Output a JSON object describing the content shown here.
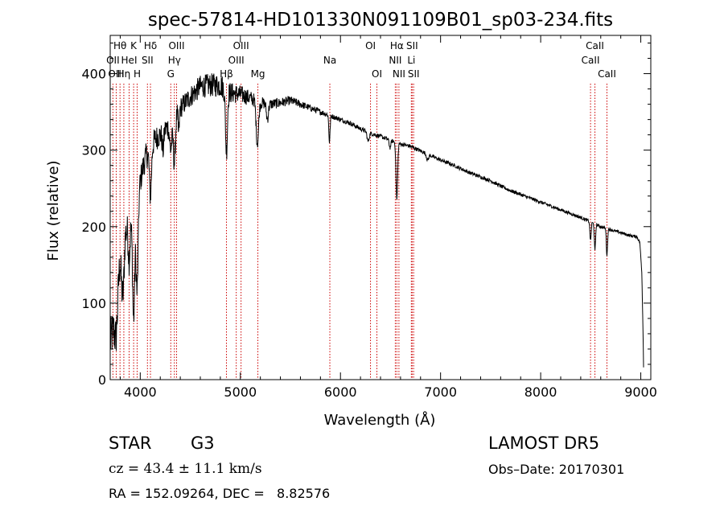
{
  "chart_data": {
    "type": "line",
    "title": "spec-57814-HD101330N091109B01_sp03-234.fits",
    "xlabel": "Wavelength (Å)",
    "ylabel": "Flux (relative)",
    "xlim": [
      3700,
      9100
    ],
    "ylim": [
      0,
      450
    ],
    "x_ticks": [
      4000,
      5000,
      6000,
      7000,
      8000,
      9000
    ],
    "y_ticks": [
      0,
      100,
      200,
      300,
      400
    ],
    "grid": false,
    "line_color": "#000000",
    "line_marker_color": "#cc0000",
    "line_markers": [
      {
        "label": "Hθ",
        "x": 3798,
        "row": 0
      },
      {
        "label": "OII",
        "x": 3727,
        "row": 1
      },
      {
        "label": "OIII",
        "x": 3760,
        "row": 2
      },
      {
        "label": "Hη",
        "x": 3836,
        "row": 2
      },
      {
        "label": "HeI",
        "x": 3889,
        "row": 1
      },
      {
        "label": "K",
        "x": 3934,
        "row": 0
      },
      {
        "label": "H",
        "x": 3969,
        "row": 2
      },
      {
        "label": "SII",
        "x": 4072,
        "row": 1
      },
      {
        "label": "Hδ",
        "x": 4102,
        "row": 0
      },
      {
        "label": "OIII",
        "x": 4363,
        "row": 0
      },
      {
        "label": "Hγ",
        "x": 4341,
        "row": 1
      },
      {
        "label": "G",
        "x": 4305,
        "row": 2
      },
      {
        "label": "Hβ",
        "x": 4861,
        "row": 2
      },
      {
        "label": "OIII",
        "x": 5007,
        "row": 0
      },
      {
        "label": "OIII",
        "x": 4959,
        "row": 1
      },
      {
        "label": "Mg",
        "x": 5175,
        "row": 2
      },
      {
        "label": "Na",
        "x": 5894,
        "row": 1
      },
      {
        "label": "OI",
        "x": 6300,
        "row": 0
      },
      {
        "label": "OI",
        "x": 6364,
        "row": 2
      },
      {
        "label": "Hα",
        "x": 6563,
        "row": 0
      },
      {
        "label": "NII",
        "x": 6548,
        "row": 1
      },
      {
        "label": "NII",
        "x": 6584,
        "row": 2
      },
      {
        "label": "SII",
        "x": 6716,
        "row": 0
      },
      {
        "label": "Li",
        "x": 6708,
        "row": 1
      },
      {
        "label": "SII",
        "x": 6731,
        "row": 2
      },
      {
        "label": "CaII",
        "x": 8542,
        "row": 0
      },
      {
        "label": "CaII",
        "x": 8498,
        "row": 1
      },
      {
        "label": "CaII",
        "x": 8662,
        "row": 2
      }
    ],
    "continuum": [
      [
        3700,
        150
      ],
      [
        3760,
        175
      ],
      [
        3820,
        195
      ],
      [
        3900,
        200
      ],
      [
        3960,
        215
      ],
      [
        4000,
        260
      ],
      [
        4050,
        290
      ],
      [
        4100,
        300
      ],
      [
        4150,
        315
      ],
      [
        4200,
        320
      ],
      [
        4300,
        335
      ],
      [
        4400,
        355
      ],
      [
        4500,
        370
      ],
      [
        4600,
        383
      ],
      [
        4700,
        385
      ],
      [
        4800,
        385
      ],
      [
        4900,
        375
      ],
      [
        5000,
        373
      ],
      [
        5100,
        368
      ],
      [
        5200,
        362
      ],
      [
        5300,
        360
      ],
      [
        5400,
        362
      ],
      [
        5500,
        365
      ],
      [
        5600,
        360
      ],
      [
        5700,
        355
      ],
      [
        5800,
        350
      ],
      [
        5900,
        345
      ],
      [
        6000,
        340
      ],
      [
        6100,
        335
      ],
      [
        6200,
        328
      ],
      [
        6300,
        322
      ],
      [
        6400,
        318
      ],
      [
        6500,
        313
      ],
      [
        6600,
        308
      ],
      [
        6700,
        305
      ],
      [
        6800,
        299
      ],
      [
        6900,
        293
      ],
      [
        7000,
        287
      ],
      [
        7100,
        282
      ],
      [
        7200,
        276
      ],
      [
        7300,
        270
      ],
      [
        7400,
        265
      ],
      [
        7500,
        260
      ],
      [
        7600,
        253
      ],
      [
        7700,
        247
      ],
      [
        7800,
        242
      ],
      [
        7900,
        237
      ],
      [
        8000,
        232
      ],
      [
        8100,
        227
      ],
      [
        8200,
        222
      ],
      [
        8300,
        217
      ],
      [
        8400,
        212
      ],
      [
        8500,
        206
      ],
      [
        8600,
        200
      ],
      [
        8700,
        196
      ],
      [
        8800,
        192
      ],
      [
        8900,
        188
      ],
      [
        8960,
        187
      ],
      [
        8990,
        180
      ],
      [
        9010,
        140
      ],
      [
        9020,
        80
      ],
      [
        9030,
        0
      ]
    ],
    "absorption_features": [
      [
        3705,
        60,
        100
      ],
      [
        3760,
        15,
        50
      ],
      [
        3820,
        10,
        60
      ],
      [
        3835,
        8,
        40
      ],
      [
        3889,
        8,
        40
      ],
      [
        3934,
        10,
        130
      ],
      [
        3969,
        10,
        110
      ],
      [
        4102,
        10,
        60
      ],
      [
        4227,
        8,
        25
      ],
      [
        4305,
        12,
        35
      ],
      [
        4341,
        10,
        60
      ],
      [
        4384,
        6,
        30
      ],
      [
        4861,
        10,
        80
      ],
      [
        5170,
        12,
        55
      ],
      [
        5270,
        10,
        20
      ],
      [
        5890,
        6,
        35
      ],
      [
        6276,
        10,
        12
      ],
      [
        6495,
        8,
        10
      ],
      [
        6563,
        8,
        75
      ],
      [
        6870,
        10,
        8
      ],
      [
        8498,
        6,
        25
      ],
      [
        8542,
        6,
        35
      ],
      [
        8662,
        6,
        35
      ]
    ],
    "noise_amplitude": [
      [
        3700,
        30
      ],
      [
        4000,
        18
      ],
      [
        4400,
        14
      ],
      [
        4800,
        16
      ],
      [
        5200,
        8
      ],
      [
        5600,
        5
      ],
      [
        6000,
        3
      ],
      [
        7000,
        2.5
      ],
      [
        9000,
        2
      ]
    ]
  },
  "info": {
    "object_class": "STAR",
    "subclass": "G3",
    "survey": "LAMOST DR5",
    "redshift_line": "cz = 43.4 ± 11.1 km/s",
    "obs_date": "Obs–Date: 20170301",
    "coords": "RA = 152.09264, DEC =   8.82576"
  }
}
